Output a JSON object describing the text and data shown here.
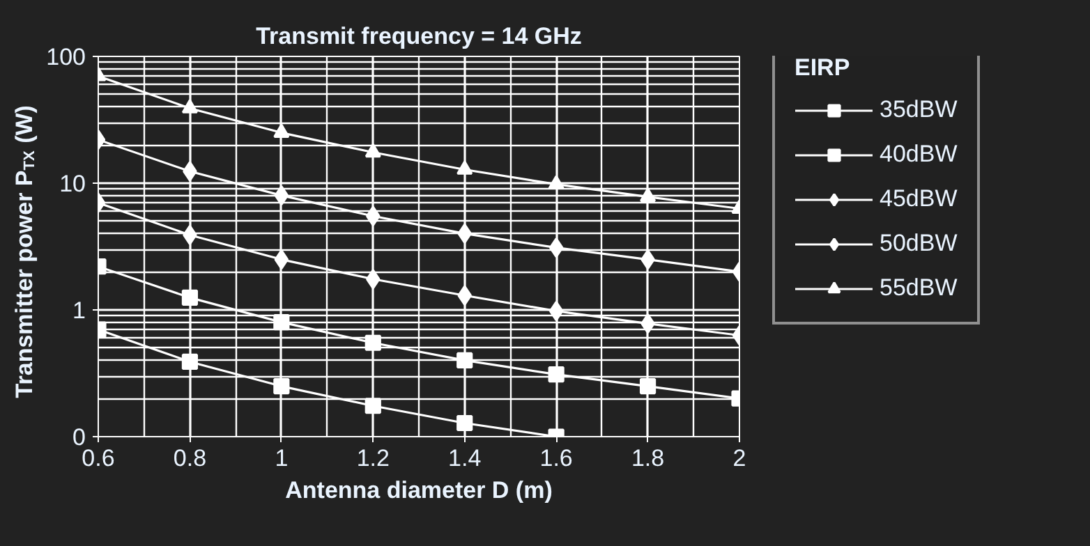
{
  "chart_data": {
    "type": "line",
    "title": "Transmit frequency = 14 GHz",
    "xlabel": "Antenna diameter D (m)",
    "ylabel": "Transmitter power P$_{TX}$ (W)",
    "legend_title": "EIRP",
    "x": [
      0.6,
      0.8,
      1.0,
      1.2,
      1.4,
      1.6,
      1.8,
      2.0
    ],
    "series": [
      {
        "name": "35dBW",
        "color": "#ffffff",
        "marker": "square",
        "values": [
          0.7,
          0.39,
          0.25,
          0.175,
          0.128,
          0.1,
          null,
          null
        ]
      },
      {
        "name": "40dBW",
        "color": "#ffffff",
        "marker": "square",
        "values": [
          2.2,
          1.25,
          0.8,
          0.55,
          0.4,
          0.31,
          0.25,
          0.2
        ]
      },
      {
        "name": "45dBW",
        "color": "#ffffff",
        "marker": "diamond",
        "values": [
          7,
          3.9,
          2.5,
          1.75,
          1.3,
          0.98,
          0.78,
          0.63
        ]
      },
      {
        "name": "50dBW",
        "color": "#ffffff",
        "marker": "diamond",
        "values": [
          22,
          12.4,
          8,
          5.5,
          4,
          3.1,
          2.5,
          2.0
        ]
      },
      {
        "name": "55dBW",
        "color": "#ffffff",
        "marker": "triangle",
        "values": [
          70,
          39,
          25,
          17.5,
          12.8,
          9.8,
          7.8,
          6.3
        ]
      }
    ],
    "xlim": [
      0.6,
      2.0
    ],
    "xticks": [
      0.6,
      0.8,
      1,
      1.2,
      1.4,
      1.6,
      1.8,
      2
    ],
    "ylim": [
      0.1,
      100
    ],
    "yticks": [
      {
        "value": 0.1,
        "label": "0"
      },
      1,
      10,
      100
    ],
    "log": "y",
    "grid": true,
    "legend": "right",
    "line_style": "solid"
  }
}
